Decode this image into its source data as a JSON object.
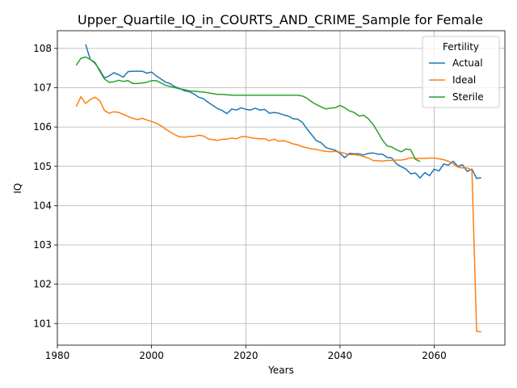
{
  "chart_data": {
    "type": "line",
    "title": "Upper_Quartile_IQ_in_COURTS_AND_CRIME_Sample for Female",
    "xlabel": "Years",
    "ylabel": "IQ",
    "xlim": [
      1980,
      2075
    ],
    "ylim": [
      100.45,
      108.45
    ],
    "xticks": [
      1980,
      2000,
      2020,
      2040,
      2060
    ],
    "yticks": [
      101,
      102,
      103,
      104,
      105,
      106,
      107,
      108
    ],
    "grid": true,
    "legend": {
      "title": "Fertility",
      "placement": "top-right"
    },
    "series": [
      {
        "name": "Actual",
        "color": "#1f77b4",
        "points": [
          [
            1986,
            108.1
          ],
          [
            1987,
            107.72
          ],
          [
            1988,
            107.62
          ],
          [
            1989,
            107.45
          ],
          [
            1990,
            107.25
          ],
          [
            1991,
            107.3
          ],
          [
            1992,
            107.38
          ],
          [
            1993,
            107.33
          ],
          [
            1994,
            107.27
          ],
          [
            1995,
            107.41
          ],
          [
            1996,
            107.42
          ],
          [
            1997,
            107.42
          ],
          [
            1998,
            107.42
          ],
          [
            1999,
            107.37
          ],
          [
            2000,
            107.4
          ],
          [
            2001,
            107.3
          ],
          [
            2002,
            107.22
          ],
          [
            2003,
            107.14
          ],
          [
            2004,
            107.1
          ],
          [
            2005,
            107.02
          ],
          [
            2006,
            106.98
          ],
          [
            2007,
            106.92
          ],
          [
            2008,
            106.9
          ],
          [
            2009,
            106.84
          ],
          [
            2010,
            106.76
          ],
          [
            2011,
            106.72
          ],
          [
            2012,
            106.63
          ],
          [
            2013,
            106.55
          ],
          [
            2014,
            106.47
          ],
          [
            2015,
            106.42
          ],
          [
            2016,
            106.34
          ],
          [
            2017,
            106.46
          ],
          [
            2018,
            106.43
          ],
          [
            2019,
            106.49
          ],
          [
            2020,
            106.45
          ],
          [
            2021,
            106.43
          ],
          [
            2022,
            106.48
          ],
          [
            2023,
            106.43
          ],
          [
            2024,
            106.45
          ],
          [
            2025,
            106.35
          ],
          [
            2026,
            106.37
          ],
          [
            2027,
            106.35
          ],
          [
            2028,
            106.31
          ],
          [
            2029,
            106.28
          ],
          [
            2030,
            106.21
          ],
          [
            2031,
            106.2
          ],
          [
            2032,
            106.12
          ],
          [
            2033,
            105.95
          ],
          [
            2034,
            105.8
          ],
          [
            2035,
            105.65
          ],
          [
            2036,
            105.6
          ],
          [
            2037,
            105.48
          ],
          [
            2038,
            105.44
          ],
          [
            2039,
            105.41
          ],
          [
            2040,
            105.33
          ],
          [
            2041,
            105.22
          ],
          [
            2042,
            105.33
          ],
          [
            2043,
            105.32
          ],
          [
            2044,
            105.32
          ],
          [
            2045,
            105.29
          ],
          [
            2046,
            105.33
          ],
          [
            2047,
            105.34
          ],
          [
            2048,
            105.31
          ],
          [
            2049,
            105.31
          ],
          [
            2050,
            105.23
          ],
          [
            2051,
            105.21
          ],
          [
            2052,
            105.06
          ],
          [
            2053,
            104.99
          ],
          [
            2054,
            104.93
          ],
          [
            2055,
            104.81
          ],
          [
            2056,
            104.83
          ],
          [
            2057,
            104.7
          ],
          [
            2058,
            104.84
          ],
          [
            2059,
            104.76
          ],
          [
            2060,
            104.93
          ],
          [
            2061,
            104.88
          ],
          [
            2062,
            105.06
          ],
          [
            2063,
            105.03
          ],
          [
            2064,
            105.13
          ],
          [
            2065,
            105.0
          ],
          [
            2066,
            105.04
          ],
          [
            2067,
            104.87
          ],
          [
            2068,
            104.93
          ],
          [
            2069,
            104.69
          ],
          [
            2070,
            104.71
          ]
        ]
      },
      {
        "name": "Ideal",
        "color": "#ff7f0e",
        "points": [
          [
            1984,
            106.52
          ],
          [
            1985,
            106.77
          ],
          [
            1986,
            106.6
          ],
          [
            1987,
            106.7
          ],
          [
            1988,
            106.76
          ],
          [
            1989,
            106.67
          ],
          [
            1990,
            106.42
          ],
          [
            1991,
            106.35
          ],
          [
            1992,
            106.39
          ],
          [
            1993,
            106.37
          ],
          [
            1994,
            106.32
          ],
          [
            1995,
            106.27
          ],
          [
            1996,
            106.22
          ],
          [
            1997,
            106.19
          ],
          [
            1998,
            106.22
          ],
          [
            1999,
            106.18
          ],
          [
            2000,
            106.14
          ],
          [
            2001,
            106.1
          ],
          [
            2002,
            106.03
          ],
          [
            2003,
            105.95
          ],
          [
            2004,
            105.87
          ],
          [
            2005,
            105.8
          ],
          [
            2006,
            105.75
          ],
          [
            2007,
            105.74
          ],
          [
            2008,
            105.76
          ],
          [
            2009,
            105.76
          ],
          [
            2010,
            105.79
          ],
          [
            2011,
            105.77
          ],
          [
            2012,
            105.7
          ],
          [
            2013,
            105.68
          ],
          [
            2014,
            105.66
          ],
          [
            2015,
            105.69
          ],
          [
            2016,
            105.69
          ],
          [
            2017,
            105.72
          ],
          [
            2018,
            105.7
          ],
          [
            2019,
            105.75
          ],
          [
            2020,
            105.76
          ],
          [
            2021,
            105.73
          ],
          [
            2022,
            105.71
          ],
          [
            2023,
            105.7
          ],
          [
            2024,
            105.7
          ],
          [
            2025,
            105.65
          ],
          [
            2026,
            105.69
          ],
          [
            2027,
            105.64
          ],
          [
            2028,
            105.65
          ],
          [
            2029,
            105.62
          ],
          [
            2030,
            105.57
          ],
          [
            2031,
            105.55
          ],
          [
            2032,
            105.5
          ],
          [
            2033,
            105.47
          ],
          [
            2034,
            105.44
          ],
          [
            2035,
            105.43
          ],
          [
            2036,
            105.4
          ],
          [
            2037,
            105.38
          ],
          [
            2038,
            105.37
          ],
          [
            2039,
            105.38
          ],
          [
            2040,
            105.36
          ],
          [
            2041,
            105.33
          ],
          [
            2042,
            105.3
          ],
          [
            2043,
            105.3
          ],
          [
            2044,
            105.28
          ],
          [
            2045,
            105.25
          ],
          [
            2046,
            105.21
          ],
          [
            2047,
            105.15
          ],
          [
            2048,
            105.14
          ],
          [
            2049,
            105.13
          ],
          [
            2050,
            105.15
          ],
          [
            2051,
            105.15
          ],
          [
            2052,
            105.16
          ],
          [
            2053,
            105.16
          ],
          [
            2054,
            105.18
          ],
          [
            2055,
            105.22
          ],
          [
            2056,
            105.2
          ],
          [
            2057,
            105.2
          ],
          [
            2058,
            105.2
          ],
          [
            2059,
            105.21
          ],
          [
            2060,
            105.21
          ],
          [
            2061,
            105.19
          ],
          [
            2062,
            105.17
          ],
          [
            2063,
            105.13
          ],
          [
            2064,
            105.07
          ],
          [
            2065,
            104.98
          ],
          [
            2066,
            104.96
          ],
          [
            2067,
            104.96
          ],
          [
            2068,
            104.9
          ],
          [
            2069,
            100.8
          ],
          [
            2070,
            100.79
          ]
        ]
      },
      {
        "name": "Sterile",
        "color": "#2ca02c",
        "points": [
          [
            1984,
            107.57
          ],
          [
            1985,
            107.75
          ],
          [
            1986,
            107.78
          ],
          [
            1987,
            107.72
          ],
          [
            1988,
            107.64
          ],
          [
            1989,
            107.42
          ],
          [
            1990,
            107.22
          ],
          [
            1991,
            107.14
          ],
          [
            1992,
            107.15
          ],
          [
            1993,
            107.19
          ],
          [
            1994,
            107.16
          ],
          [
            1995,
            107.18
          ],
          [
            1996,
            107.11
          ],
          [
            1997,
            107.11
          ],
          [
            1998,
            107.12
          ],
          [
            1999,
            107.14
          ],
          [
            2000,
            107.18
          ],
          [
            2001,
            107.18
          ],
          [
            2002,
            107.12
          ],
          [
            2003,
            107.06
          ],
          [
            2004,
            107.03
          ],
          [
            2005,
            107.0
          ],
          [
            2006,
            106.97
          ],
          [
            2007,
            106.95
          ],
          [
            2008,
            106.92
          ],
          [
            2009,
            106.91
          ],
          [
            2010,
            106.9
          ],
          [
            2011,
            106.89
          ],
          [
            2012,
            106.87
          ],
          [
            2013,
            106.85
          ],
          [
            2014,
            106.83
          ],
          [
            2015,
            106.83
          ],
          [
            2016,
            106.82
          ],
          [
            2017,
            106.81
          ],
          [
            2018,
            106.81
          ],
          [
            2019,
            106.81
          ],
          [
            2020,
            106.81
          ],
          [
            2021,
            106.81
          ],
          [
            2022,
            106.81
          ],
          [
            2023,
            106.81
          ],
          [
            2024,
            106.81
          ],
          [
            2025,
            106.81
          ],
          [
            2026,
            106.81
          ],
          [
            2027,
            106.81
          ],
          [
            2028,
            106.81
          ],
          [
            2029,
            106.81
          ],
          [
            2030,
            106.81
          ],
          [
            2031,
            106.81
          ],
          [
            2032,
            106.79
          ],
          [
            2033,
            106.73
          ],
          [
            2034,
            106.64
          ],
          [
            2035,
            106.57
          ],
          [
            2036,
            106.51
          ],
          [
            2037,
            106.46
          ],
          [
            2038,
            106.48
          ],
          [
            2039,
            106.49
          ],
          [
            2040,
            106.55
          ],
          [
            2041,
            106.49
          ],
          [
            2042,
            106.41
          ],
          [
            2043,
            106.37
          ],
          [
            2044,
            106.28
          ],
          [
            2045,
            106.3
          ],
          [
            2046,
            106.21
          ],
          [
            2047,
            106.07
          ],
          [
            2048,
            105.88
          ],
          [
            2049,
            105.67
          ],
          [
            2050,
            105.52
          ],
          [
            2051,
            105.49
          ],
          [
            2052,
            105.42
          ],
          [
            2053,
            105.37
          ],
          [
            2054,
            105.44
          ],
          [
            2055,
            105.42
          ],
          [
            2056,
            105.18
          ],
          [
            2057,
            105.12
          ]
        ]
      }
    ]
  }
}
